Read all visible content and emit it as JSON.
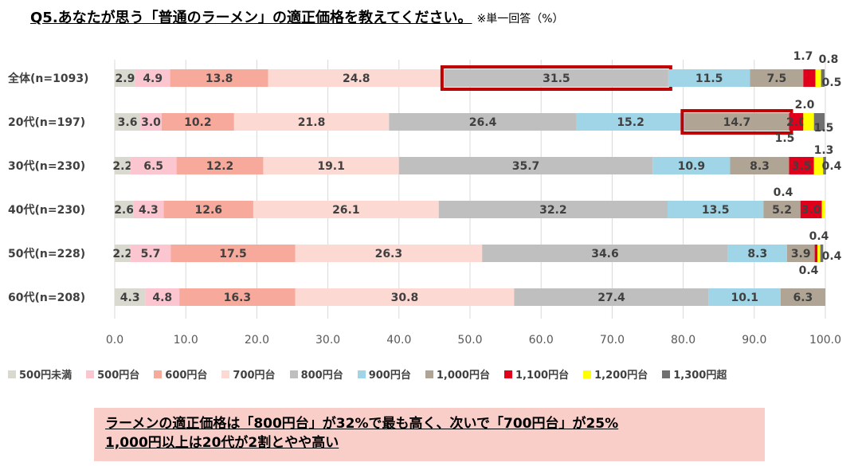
{
  "title": "Q5.あなたが思う「普通のラーメン」の適正価格を教えてください。",
  "subtitle": "※単一回答（%）",
  "chart_data": {
    "type": "bar",
    "orientation": "horizontal",
    "stacked": true,
    "categories": [
      "全体(n=1093)",
      "20代(n=197)",
      "30代(n=230)",
      "40代(n=230)",
      "50代(n=228)",
      "60代(n=208)"
    ],
    "series": [
      {
        "name": "500円未満",
        "color": "#d9d9d0",
        "values": [
          2.9,
          3.6,
          2.2,
          2.6,
          2.2,
          4.3
        ]
      },
      {
        "name": "500円台",
        "color": "#fbc6cf",
        "values": [
          4.9,
          3.0,
          6.5,
          4.3,
          5.7,
          4.8
        ]
      },
      {
        "name": "600円台",
        "color": "#f7a99c",
        "values": [
          13.8,
          10.2,
          12.2,
          12.6,
          17.5,
          16.3
        ]
      },
      {
        "name": "700円台",
        "color": "#fcd9d3",
        "values": [
          24.8,
          21.8,
          19.1,
          26.1,
          26.3,
          30.8
        ]
      },
      {
        "name": "800円台",
        "color": "#bfbfbf",
        "values": [
          31.5,
          26.4,
          35.7,
          32.2,
          34.6,
          27.4
        ]
      },
      {
        "name": "900円台",
        "color": "#9fd5e6",
        "values": [
          11.5,
          15.2,
          10.9,
          13.5,
          8.3,
          10.1
        ]
      },
      {
        "name": "1,000円台",
        "color": "#b0a594",
        "values": [
          7.5,
          14.7,
          8.3,
          5.2,
          3.9,
          6.3
        ]
      },
      {
        "name": "1,100円台",
        "color": "#e0001b",
        "values": [
          1.7,
          2.0,
          3.5,
          3.0,
          0.4,
          0
        ]
      },
      {
        "name": "1,200円台",
        "color": "#ffff00",
        "values": [
          0.8,
          1.5,
          1.3,
          0.4,
          0.4,
          0
        ]
      },
      {
        "name": "1,300円超",
        "color": "#707070",
        "values": [
          0.5,
          1.5,
          0.4,
          0,
          0.4,
          0
        ]
      }
    ],
    "xlim": [
      0,
      100
    ],
    "xticks": [
      "0.0",
      "10.0",
      "20.0",
      "30.0",
      "40.0",
      "50.0",
      "60.0",
      "70.0",
      "80.0",
      "90.0",
      "100.0"
    ],
    "grid": true,
    "legend_position": "bottom",
    "highlighted_segments": [
      {
        "row": 0,
        "series": "800円台"
      },
      {
        "row": 1,
        "series": "1,000円台"
      }
    ],
    "outer_labels": [
      {
        "row": 0,
        "text": "1.7"
      },
      {
        "row": 0,
        "text": "0.8"
      },
      {
        "row": 0,
        "text": "0.5"
      },
      {
        "row": 1,
        "text": "2.0"
      },
      {
        "row": 1,
        "text": "1.5"
      },
      {
        "row": 1,
        "text": "1.5"
      },
      {
        "row": 2,
        "text": "1.3"
      },
      {
        "row": 2,
        "text": "0.4"
      },
      {
        "row": 3,
        "text": "0.4"
      },
      {
        "row": 4,
        "text": "0.4"
      },
      {
        "row": 4,
        "text": "0.4"
      },
      {
        "row": 4,
        "text": "0.4"
      }
    ]
  },
  "summary": {
    "line1": "ラーメンの適正価格は「800円台」が32%で最も高く、次いで「700円台」が25%",
    "line2": "1,000円以上は20代が2割とやや高い"
  }
}
